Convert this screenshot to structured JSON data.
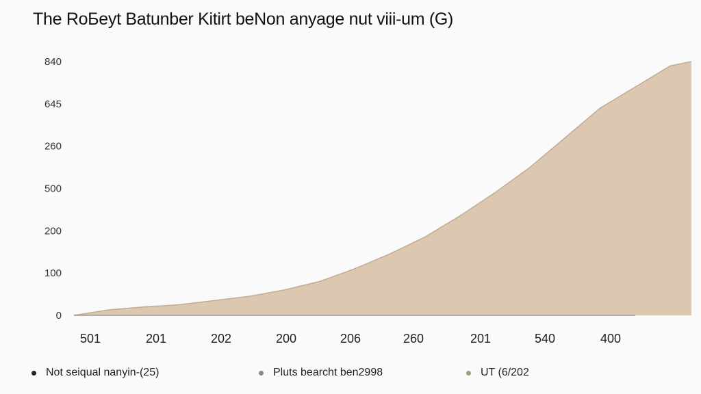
{
  "chart_data": {
    "type": "area",
    "title": "The RoБeyt Batunber Kitirt beNon anyage nut viii-um (G)",
    "xlabel": "",
    "ylabel": "",
    "y_ticks": [
      {
        "label": "0",
        "value": 0
      },
      {
        "label": "100",
        "value": 1
      },
      {
        "label": "200",
        "value": 2
      },
      {
        "label": "500",
        "value": 3
      },
      {
        "label": "260",
        "value": 4
      },
      {
        "label": "645",
        "value": 5
      },
      {
        "label": "840",
        "value": 6
      }
    ],
    "ylim": [
      0,
      6
    ],
    "x_tick_labels": [
      "501",
      "201",
      "202",
      "200",
      "206",
      "260",
      "201",
      "540",
      "400"
    ],
    "grid": false,
    "fill_color": "#dcc8b0",
    "line_color": "#c2ab90",
    "series": [
      {
        "x": [
          0,
          0.5,
          1,
          1.5,
          2,
          2.5,
          3,
          3.5,
          4,
          4.5,
          5,
          5.5,
          6,
          6.5,
          7,
          7.5,
          8,
          8.5,
          8.8
        ],
        "values": [
          0,
          0.13,
          0.2,
          0.25,
          0.35,
          0.45,
          0.6,
          0.8,
          1.1,
          1.45,
          1.85,
          2.35,
          2.9,
          3.5,
          4.2,
          4.9,
          5.4,
          5.9,
          6.0
        ]
      }
    ],
    "legend_position": "bottom",
    "legend": [
      {
        "label": "Not seiqual nanyin-(25)",
        "color": "#222222"
      },
      {
        "label": "Pluts bearcht ben2998",
        "color": "#8a8a8a"
      },
      {
        "label": "UT (6/202",
        "color": "#a89a8a"
      }
    ]
  }
}
